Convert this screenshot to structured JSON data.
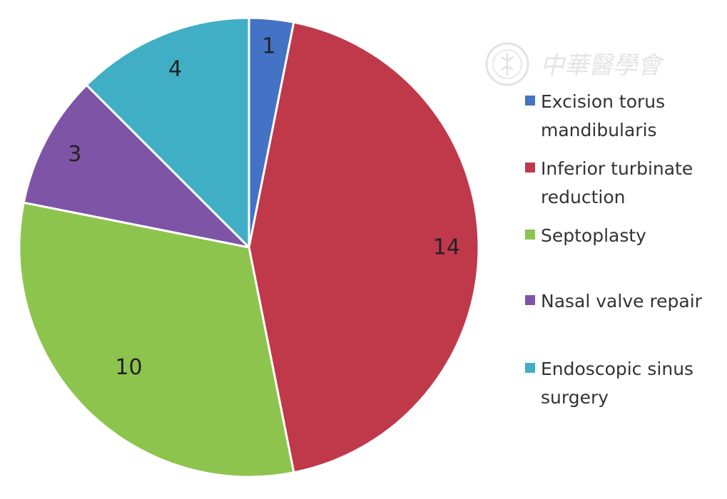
{
  "chart_data": {
    "type": "pie",
    "title": "",
    "start_angle_deg": 0,
    "direction": "clockwise",
    "legend_position": "right",
    "data_labels": true,
    "slices": [
      {
        "name": "Excision torus mandibularis",
        "legend_lines": [
          "Excision torus",
          "mandibularis"
        ],
        "value": 1,
        "label": "1",
        "color": "#4472C4"
      },
      {
        "name": "Inferior turbinate reduction",
        "legend_lines": [
          "Inferior turbinate",
          "reduction"
        ],
        "value": 14,
        "label": "14",
        "color": "#C0394B"
      },
      {
        "name": "Septoplasty",
        "legend_lines": [
          "Septoplasty"
        ],
        "value": 10,
        "label": "10",
        "color": "#8DC44E"
      },
      {
        "name": "Nasal valve repair",
        "legend_lines": [
          "Nasal valve repair"
        ],
        "value": 3,
        "label": "3",
        "color": "#7E55A6"
      },
      {
        "name": "Endoscopic sinus surgery",
        "legend_lines": [
          "Endoscopic sinus",
          "surgery"
        ],
        "value": 4,
        "label": "4",
        "color": "#40AFC6"
      }
    ]
  },
  "watermark": {
    "text": "中華醫學會",
    "seal_icon": "association-seal-icon"
  }
}
